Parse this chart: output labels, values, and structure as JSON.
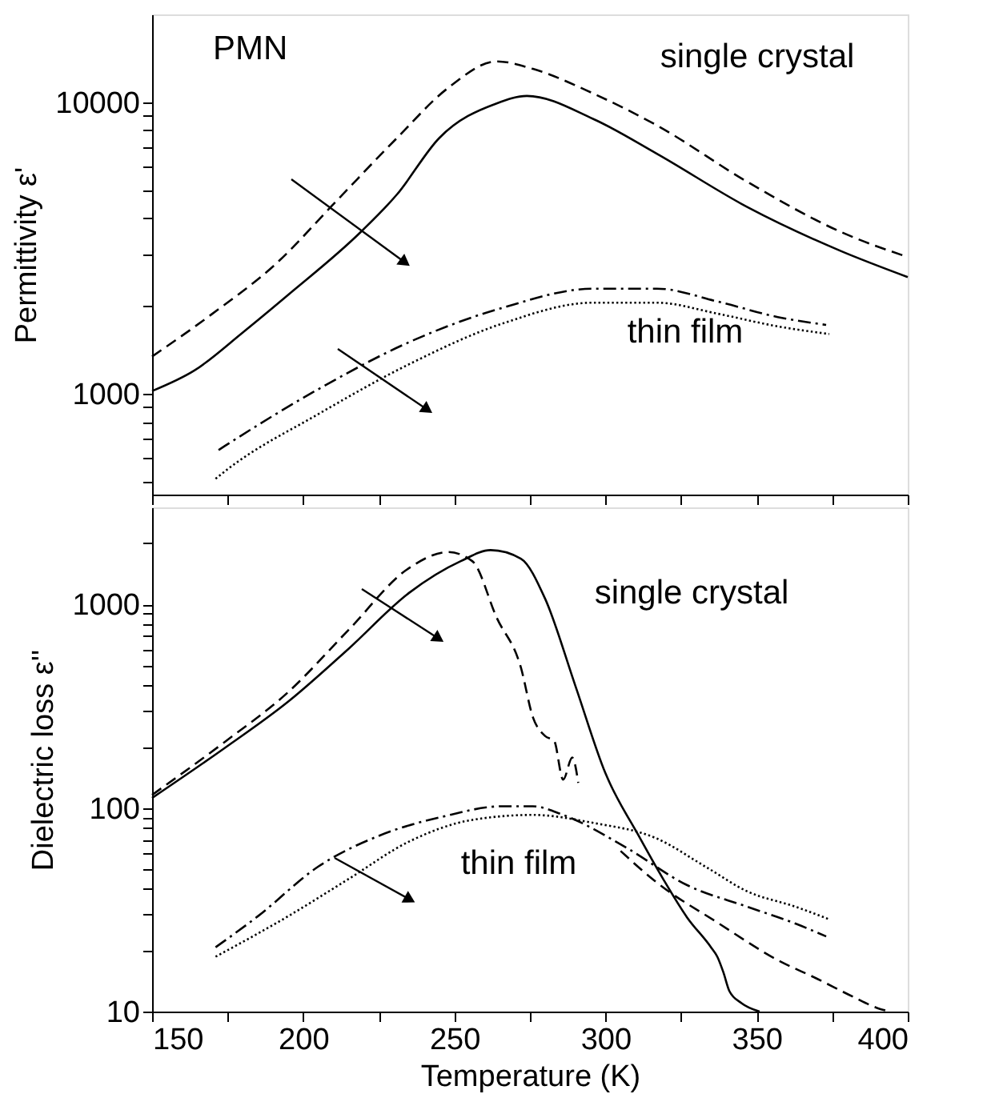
{
  "chart_data": [
    {
      "type": "line",
      "ylabel": "Permittivity ε'",
      "log": true,
      "grid": false,
      "marker": "none",
      "tick_labels": "y",
      "xlim": [
        150,
        400
      ],
      "xticks": [
        150,
        {
          "value": 175,
          "label": null
        },
        200,
        {
          "value": 225,
          "label": null
        },
        250,
        {
          "value": 275,
          "label": null
        },
        300,
        {
          "value": 325,
          "label": null
        },
        350,
        {
          "value": 375,
          "label": null
        },
        400
      ],
      "ylim": [
        450,
        20000
      ],
      "yticks": [
        {
          "value": 500,
          "label": null
        },
        {
          "value": 600,
          "label": null
        },
        {
          "value": 700,
          "label": null
        },
        {
          "value": 800,
          "label": null
        },
        {
          "value": 900,
          "label": null
        },
        1000,
        {
          "value": 2000,
          "label": null
        },
        {
          "value": 3000,
          "label": null
        },
        {
          "value": 4000,
          "label": null
        },
        {
          "value": 5000,
          "label": null
        },
        {
          "value": 6000,
          "label": null
        },
        {
          "value": 7000,
          "label": null
        },
        {
          "value": 8000,
          "label": null
        },
        {
          "value": 9000,
          "label": null
        },
        10000
      ],
      "annotations": [
        "PMN",
        "single crystal",
        "thin film"
      ],
      "series": [
        {
          "color": "#000000",
          "line_style": "solid",
          "x": [
            150,
            164,
            180,
            195,
            219,
            231,
            245,
            264,
            274,
            296,
            317,
            347,
            378,
            400
          ],
          "values": [
            1020,
            1200,
            1620,
            2180,
            3580,
            4820,
            7530,
            9900,
            10500,
            8750,
            6650,
            4360,
            3080,
            2510
          ]
        },
        {
          "color": "#000000",
          "line_style": "dashed",
          "x": [
            150,
            170,
            191,
            211,
            231,
            248,
            264,
            276,
            296,
            317,
            347,
            378,
            400
          ],
          "values": [
            1340,
            1880,
            2790,
            4580,
            7530,
            11200,
            13800,
            13000,
            10700,
            8320,
            5320,
            3580,
            2940
          ]
        },
        {
          "color": "#000000",
          "line_style": "dashdot",
          "x": [
            172,
            174,
            205,
            235,
            266,
            296,
            317,
            337,
            357,
            373
          ],
          "values": [
            640,
            660,
            1035,
            1500,
            1970,
            2290,
            2290,
            2070,
            1830,
            1720
          ]
        },
        {
          "color": "#000000",
          "line_style": "dotted",
          "x": [
            171,
            175,
            205,
            235,
            266,
            296,
            317,
            337,
            357,
            374
          ],
          "values": [
            510,
            550,
            850,
            1260,
            1740,
            2050,
            2050,
            1880,
            1700,
            1600
          ]
        }
      ]
    },
    {
      "type": "line",
      "xlabel": "Temperature  (K)",
      "ylabel": "Dielectric loss ε''",
      "log": true,
      "grid": false,
      "marker": "none",
      "xlim": [
        150,
        400
      ],
      "xticks": [
        150,
        {
          "value": 175,
          "label": null
        },
        200,
        {
          "value": 225,
          "label": null
        },
        250,
        {
          "value": 275,
          "label": null
        },
        300,
        {
          "value": 325,
          "label": null
        },
        350,
        {
          "value": 375,
          "label": null
        },
        400
      ],
      "ylim": [
        10,
        3000
      ],
      "yticks": [
        10,
        {
          "value": 20,
          "label": null
        },
        {
          "value": 30,
          "label": null
        },
        {
          "value": 40,
          "label": null
        },
        {
          "value": 50,
          "label": null
        },
        {
          "value": 60,
          "label": null
        },
        {
          "value": 70,
          "label": null
        },
        {
          "value": 80,
          "label": null
        },
        {
          "value": 90,
          "label": null
        },
        100,
        {
          "value": 200,
          "label": null
        },
        {
          "value": 300,
          "label": null
        },
        {
          "value": 400,
          "label": null
        },
        {
          "value": 500,
          "label": null
        },
        {
          "value": 600,
          "label": null
        },
        {
          "value": 700,
          "label": null
        },
        {
          "value": 800,
          "label": null
        },
        {
          "value": 900,
          "label": null
        },
        1000,
        {
          "value": 2000,
          "label": null
        }
      ],
      "annotations": [
        "single crystal",
        "thin film"
      ],
      "series": [
        {
          "color": "#000000",
          "line_style": "solid",
          "x": [
            150,
            174,
            195,
            215,
            235,
            252,
            262,
            272,
            280,
            290,
            300,
            311,
            319,
            327,
            335,
            337,
            339,
            341,
            345,
            351
          ],
          "values": [
            112,
            197,
            333,
            606,
            1140,
            1630,
            1850,
            1680,
            1070,
            400,
            148,
            73,
            45,
            29,
            20.6,
            18.6,
            15.6,
            12.6,
            11,
            10
          ]
        },
        {
          "color": "#000000",
          "line_style": "dashed",
          "x": [
            150,
            174,
            195,
            215,
            235,
            248,
            256,
            264,
            272,
            276,
            280,
            283,
            286,
            289,
            291,
            298,
            305,
            317,
            337,
            357,
            370,
            382,
            390,
            394
          ],
          "values": [
            116,
            211,
            371,
            750,
            1510,
            1810,
            1630,
            862,
            491,
            279,
            226,
            214,
            138,
            177,
            133,
            null,
            61.5,
            43,
            27.4,
            17.9,
            14.5,
            11.8,
            10.4,
            10
          ]
        },
        {
          "color": "#000000",
          "line_style": "dashdot",
          "x": [
            171,
            185,
            205,
            225,
            246,
            266,
            276,
            286,
            307,
            327,
            347,
            363,
            373
          ],
          "values": [
            20.7,
            29.4,
            51.6,
            73,
            90.6,
            102,
            102,
            92.5,
            63.7,
            41.8,
            32.7,
            27,
            23.4
          ]
        },
        {
          "color": "#000000",
          "line_style": "dotted",
          "x": [
            171,
            195,
            215,
            235,
            256,
            276,
            296,
            317,
            333,
            347,
            363,
            374
          ],
          "values": [
            18.6,
            29.4,
            44.8,
            68.4,
            87.5,
            92.5,
            84.5,
            70.8,
            51.6,
            38.9,
            32.7,
            28.4
          ]
        }
      ]
    }
  ]
}
